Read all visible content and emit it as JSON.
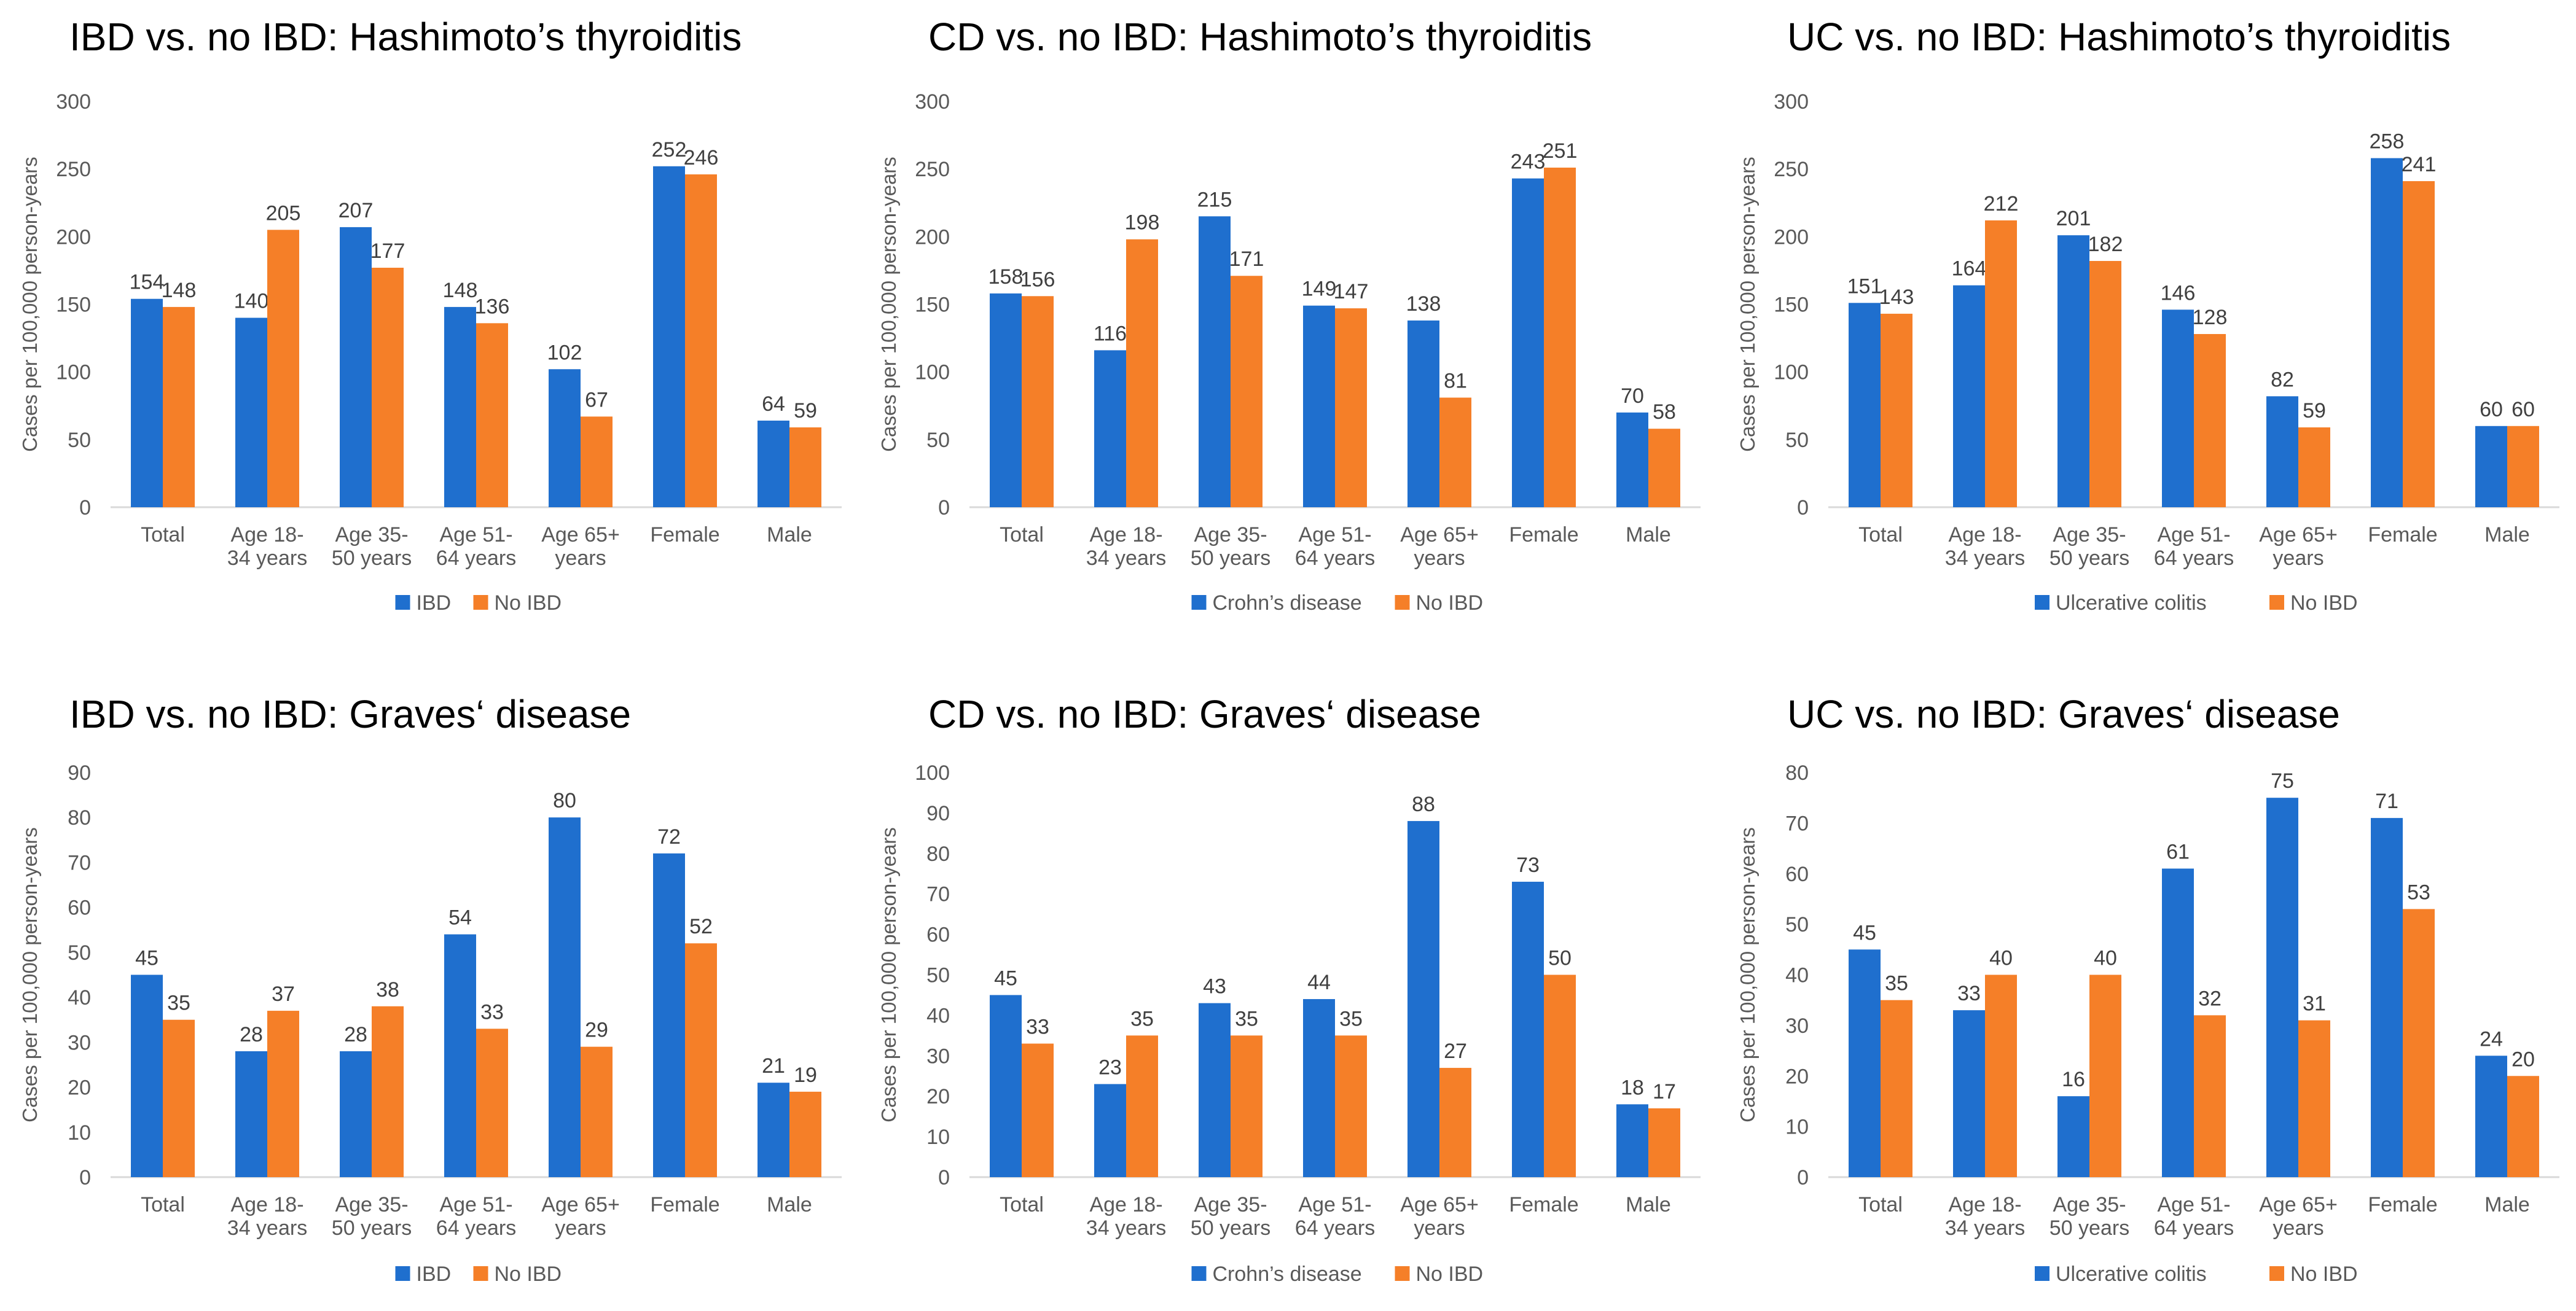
{
  "colors": {
    "primary": "#1f6fce",
    "secondary": "#f57f28",
    "axis": "#d9d9d9",
    "text": "#595959"
  },
  "chart_data": [
    {
      "type": "bar",
      "title": "IBD vs. no IBD: Hashimoto’s thyroiditis",
      "ylabel": "Cases per 100,000  person-years",
      "xlabel": "",
      "ylim": [
        0,
        300
      ],
      "yticks": [
        "0",
        "50",
        "100",
        "150",
        "200",
        "250",
        "300"
      ],
      "categories": [
        [
          "Total"
        ],
        [
          "Age 18-",
          "34 years"
        ],
        [
          "Age 35-",
          "50 years"
        ],
        [
          "Age 51-",
          "64 years"
        ],
        [
          "Age 65+",
          "years"
        ],
        [
          "Female"
        ],
        [
          "Male"
        ]
      ],
      "series": [
        {
          "name": "IBD",
          "values": [
            154,
            140,
            207,
            148,
            102,
            252,
            64
          ]
        },
        {
          "name": "No IBD",
          "values": [
            148,
            205,
            177,
            136,
            67,
            246,
            59
          ]
        }
      ],
      "legend": "bottom"
    },
    {
      "type": "bar",
      "title": "CD vs. no IBD: Hashimoto’s thyroiditis",
      "ylabel": "Cases per 100,000  person-years",
      "xlabel": "",
      "ylim": [
        0,
        300
      ],
      "yticks": [
        "0",
        "50",
        "100",
        "150",
        "200",
        "250",
        "300"
      ],
      "categories": [
        [
          "Total"
        ],
        [
          "Age 18-",
          "34 years"
        ],
        [
          "Age 35-",
          "50 years"
        ],
        [
          "Age 51-",
          "64 years"
        ],
        [
          "Age 65+",
          "years"
        ],
        [
          "Female"
        ],
        [
          "Male"
        ]
      ],
      "series": [
        {
          "name": "Crohn’s disease",
          "values": [
            158,
            116,
            215,
            149,
            138,
            243,
            70
          ]
        },
        {
          "name": "No IBD",
          "values": [
            156,
            198,
            171,
            147,
            81,
            251,
            58
          ]
        }
      ],
      "legend": "bottom"
    },
    {
      "type": "bar",
      "title": "UC vs. no IBD: Hashimoto’s thyroiditis",
      "ylabel": "Cases per 100,000  person-years",
      "xlabel": "",
      "ylim": [
        0,
        300
      ],
      "yticks": [
        "0",
        "50",
        "100",
        "150",
        "200",
        "250",
        "300"
      ],
      "categories": [
        [
          "Total"
        ],
        [
          "Age 18-",
          "34 years"
        ],
        [
          "Age 35-",
          "50 years"
        ],
        [
          "Age 51-",
          "64 years"
        ],
        [
          "Age 65+",
          "years"
        ],
        [
          "Female"
        ],
        [
          "Male"
        ]
      ],
      "series": [
        {
          "name": "Ulcerative colitis",
          "values": [
            151,
            164,
            201,
            146,
            82,
            258,
            60
          ]
        },
        {
          "name": "No IBD",
          "values": [
            143,
            212,
            182,
            128,
            59,
            241,
            60
          ]
        }
      ],
      "legend": "bottom"
    },
    {
      "type": "bar",
      "title": "IBD vs. no IBD: Graves‘ disease",
      "ylabel": "Cases per 100,000  person-years",
      "xlabel": "",
      "ylim": [
        0,
        90
      ],
      "yticks": [
        "0",
        "10",
        "20",
        "30",
        "40",
        "50",
        "60",
        "70",
        "80",
        "90"
      ],
      "categories": [
        [
          "Total"
        ],
        [
          "Age 18-",
          "34 years"
        ],
        [
          "Age 35-",
          "50 years"
        ],
        [
          "Age 51-",
          "64 years"
        ],
        [
          "Age 65+",
          "years"
        ],
        [
          "Female"
        ],
        [
          "Male"
        ]
      ],
      "series": [
        {
          "name": "IBD",
          "values": [
            45,
            28,
            28,
            54,
            80,
            72,
            21
          ]
        },
        {
          "name": "No IBD",
          "values": [
            35,
            37,
            38,
            33,
            29,
            52,
            19
          ]
        }
      ],
      "legend": "bottom"
    },
    {
      "type": "bar",
      "title": "CD vs. no IBD: Graves‘ disease",
      "ylabel": "Cases per 100,000  person-years",
      "xlabel": "",
      "ylim": [
        0,
        100
      ],
      "yticks": [
        "0",
        "10",
        "20",
        "30",
        "40",
        "50",
        "60",
        "70",
        "80",
        "90",
        "100"
      ],
      "categories": [
        [
          "Total"
        ],
        [
          "Age 18-",
          "34 years"
        ],
        [
          "Age 35-",
          "50 years"
        ],
        [
          "Age 51-",
          "64 years"
        ],
        [
          "Age 65+",
          "years"
        ],
        [
          "Female"
        ],
        [
          "Male"
        ]
      ],
      "series": [
        {
          "name": "Crohn’s disease",
          "values": [
            45,
            23,
            43,
            44,
            88,
            73,
            18
          ]
        },
        {
          "name": "No IBD",
          "values": [
            33,
            35,
            35,
            35,
            27,
            50,
            17
          ]
        }
      ],
      "legend": "bottom"
    },
    {
      "type": "bar",
      "title": "UC vs. no IBD: Graves‘ disease",
      "ylabel": "Cases per 100,000  person-years",
      "xlabel": "",
      "ylim": [
        0,
        80
      ],
      "yticks": [
        "0",
        "10",
        "20",
        "30",
        "40",
        "50",
        "60",
        "70",
        "80"
      ],
      "categories": [
        [
          "Total"
        ],
        [
          "Age 18-",
          "34 years"
        ],
        [
          "Age 35-",
          "50 years"
        ],
        [
          "Age 51-",
          "64 years"
        ],
        [
          "Age 65+",
          "years"
        ],
        [
          "Female"
        ],
        [
          "Male"
        ]
      ],
      "series": [
        {
          "name": "Ulcerative colitis",
          "values": [
            45,
            33,
            16,
            61,
            75,
            71,
            24
          ]
        },
        {
          "name": "No IBD",
          "values": [
            35,
            40,
            40,
            32,
            31,
            53,
            20
          ]
        }
      ],
      "legend": "bottom"
    }
  ]
}
